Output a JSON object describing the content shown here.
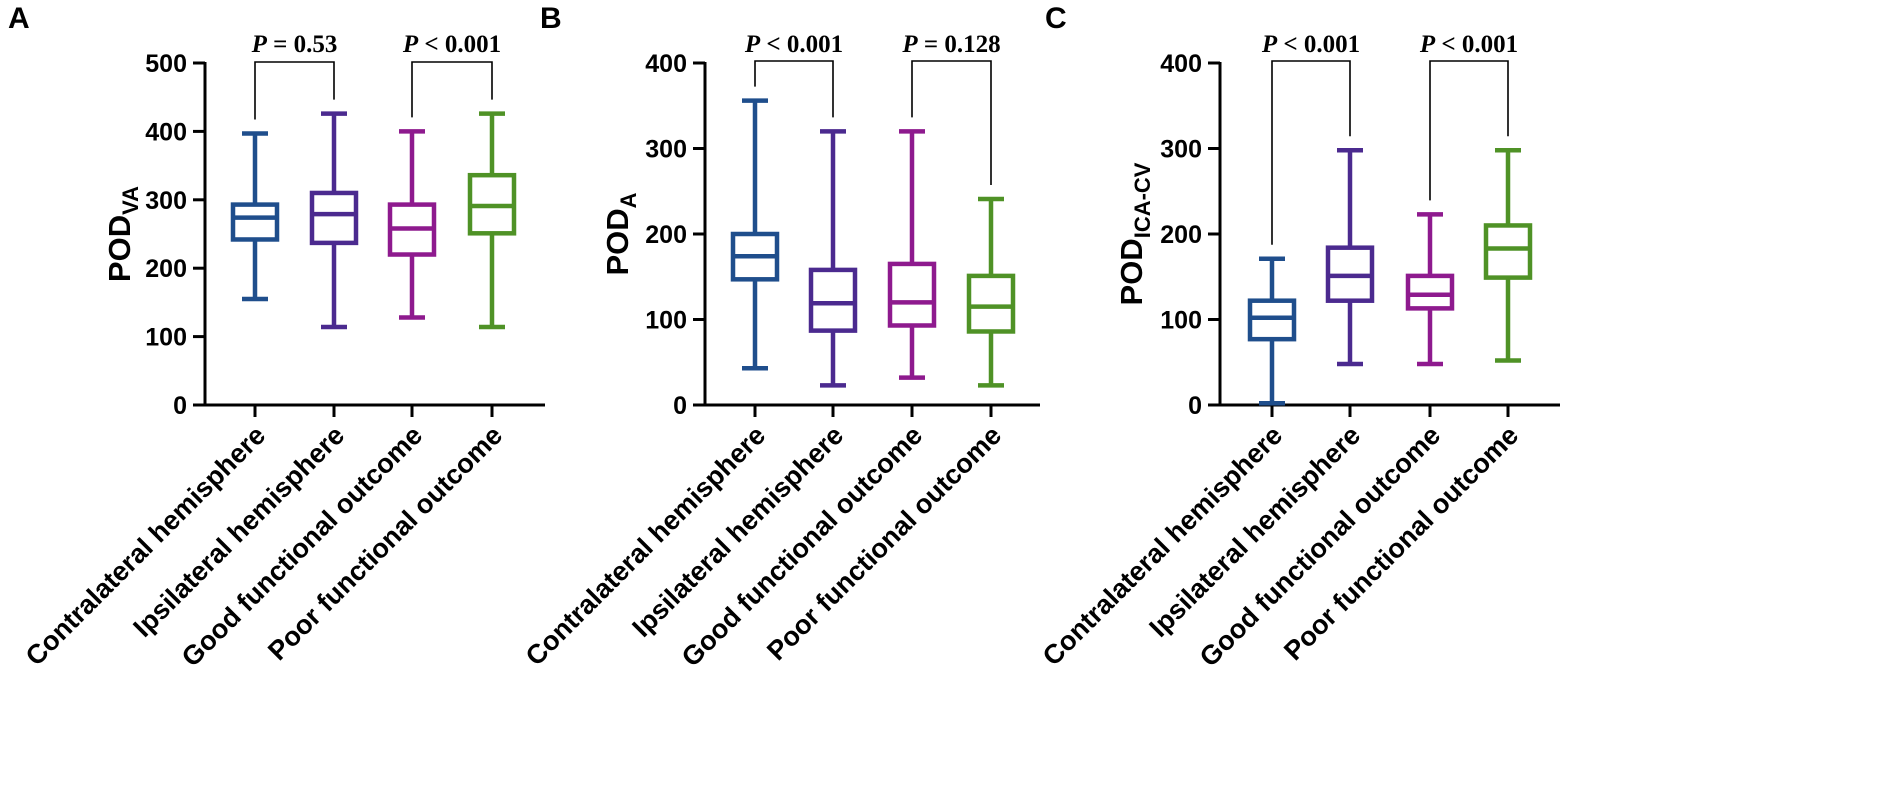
{
  "chart_data": [
    {
      "type": "box",
      "panel": "A",
      "ylabel": {
        "main": "POD",
        "sub": "VA"
      },
      "ylim": [
        0,
        500
      ],
      "yticks": [
        0,
        100,
        200,
        300,
        400,
        500
      ],
      "categories": [
        "Contralateral hemisphere",
        "Ipsilateral hemisphere",
        "Good functional outcome",
        "Poor functional outcome"
      ],
      "colors": [
        "#1f4e8c",
        "#4b2a8f",
        "#8e1a8e",
        "#4f9226"
      ],
      "boxes": [
        {
          "min": 155,
          "q1": 242,
          "median": 274,
          "q3": 293,
          "max": 397
        },
        {
          "min": 114,
          "q1": 237,
          "median": 279,
          "q3": 310,
          "max": 426
        },
        {
          "min": 128,
          "q1": 220,
          "median": 258,
          "q3": 293,
          "max": 400
        },
        {
          "min": 114,
          "q1": 251,
          "median": 291,
          "q3": 336,
          "max": 426
        }
      ],
      "comparisons": [
        {
          "from": 0,
          "to": 1,
          "p_symbol": "P",
          "p_text": " = 0.53"
        },
        {
          "from": 2,
          "to": 3,
          "p_symbol": "P",
          "p_text": " < 0.001"
        }
      ]
    },
    {
      "type": "box",
      "panel": "B",
      "ylabel": {
        "main": "POD",
        "sub": "A"
      },
      "ylim": [
        0,
        400
      ],
      "yticks": [
        0,
        100,
        200,
        300,
        400
      ],
      "categories": [
        "Contralateral hemisphere",
        "Ipsilateral hemisphere",
        "Good functional outcome",
        "Poor functional outcome"
      ],
      "colors": [
        "#1f4e8c",
        "#4b2a8f",
        "#8e1a8e",
        "#4f9226"
      ],
      "boxes": [
        {
          "min": 43,
          "q1": 147,
          "median": 174,
          "q3": 200,
          "max": 356
        },
        {
          "min": 23,
          "q1": 87,
          "median": 119,
          "q3": 158,
          "max": 320
        },
        {
          "min": 32,
          "q1": 93,
          "median": 120,
          "q3": 165,
          "max": 320
        },
        {
          "min": 23,
          "q1": 86,
          "median": 115,
          "q3": 151,
          "max": 241
        }
      ],
      "comparisons": [
        {
          "from": 0,
          "to": 1,
          "p_symbol": "P",
          "p_text": " < 0.001"
        },
        {
          "from": 2,
          "to": 3,
          "p_symbol": "P",
          "p_text": " = 0.128"
        }
      ]
    },
    {
      "type": "box",
      "panel": "C",
      "ylabel": {
        "main": "POD",
        "sub": "ICA-CV"
      },
      "ylim": [
        0,
        400
      ],
      "yticks": [
        0,
        100,
        200,
        300,
        400
      ],
      "categories": [
        "Contralateral hemisphere",
        "Ipsilateral hemisphere",
        "Good functional outcome",
        "Poor functional outcome"
      ],
      "colors": [
        "#1f4e8c",
        "#4b2a8f",
        "#8e1a8e",
        "#4f9226"
      ],
      "boxes": [
        {
          "min": 2,
          "q1": 77,
          "median": 102,
          "q3": 122,
          "max": 171
        },
        {
          "min": 48,
          "q1": 122,
          "median": 151,
          "q3": 184,
          "max": 298
        },
        {
          "min": 48,
          "q1": 113,
          "median": 129,
          "q3": 151,
          "max": 223
        },
        {
          "min": 52,
          "q1": 149,
          "median": 183,
          "q3": 210,
          "max": 298
        }
      ],
      "comparisons": [
        {
          "from": 0,
          "to": 1,
          "p_symbol": "P",
          "p_text": " < 0.001"
        },
        {
          "from": 2,
          "to": 3,
          "p_symbol": "P",
          "p_text": " < 0.001"
        }
      ]
    }
  ]
}
